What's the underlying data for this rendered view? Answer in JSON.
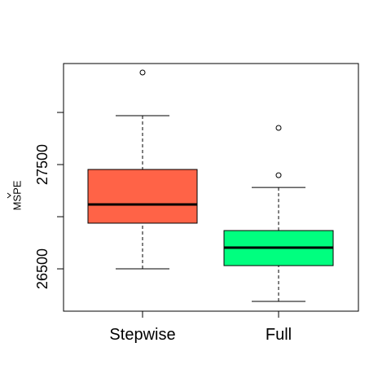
{
  "chart_data": {
    "type": "box",
    "ylabel": "MSPE",
    "ylim": [
      26094,
      28469
    ],
    "yticks": [
      26500,
      27500
    ],
    "yticks_minor": [
      27000,
      28000
    ],
    "series": [
      {
        "name": "Stepwise",
        "color": "#ff6347",
        "whisker_low": 26500,
        "q1": 26938,
        "median": 27117,
        "q3": 27453,
        "whisker_high": 27969,
        "outliers": [
          28383
        ]
      },
      {
        "name": "Full",
        "color": "#00ff7f",
        "whisker_low": 26188,
        "q1": 26531,
        "median": 26703,
        "q3": 26867,
        "whisker_high": 27281,
        "outliers": [
          27398,
          27852
        ]
      }
    ]
  }
}
